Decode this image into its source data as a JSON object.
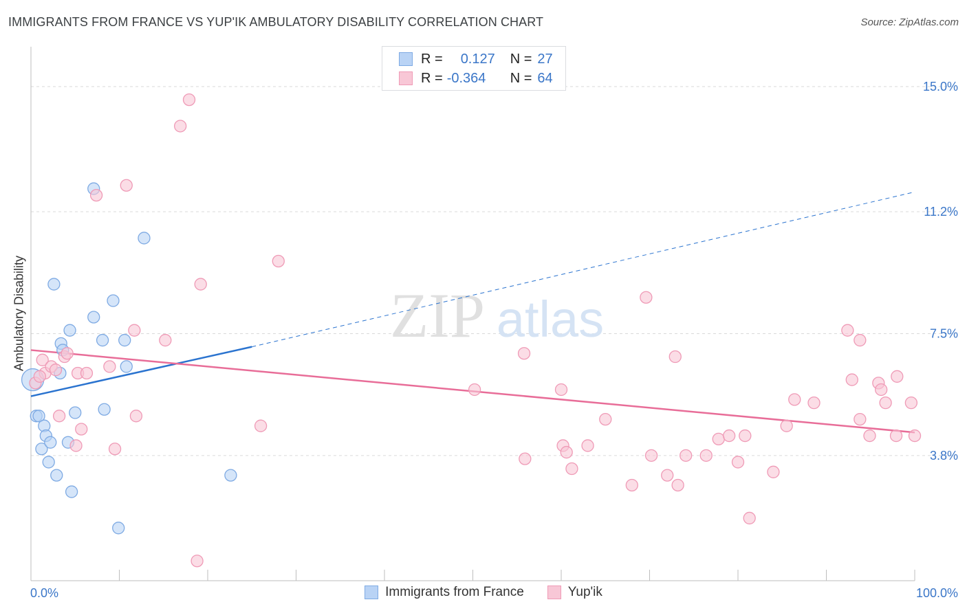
{
  "header": {
    "title": "IMMIGRANTS FROM FRANCE VS YUP'IK AMBULATORY DISABILITY CORRELATION CHART",
    "source": "Source: ZipAtlas.com"
  },
  "legend": {
    "rows": [
      {
        "r_label": "R =",
        "r_value": "0.127",
        "n_label": "N =",
        "n_value": "27"
      },
      {
        "r_label": "R =",
        "r_value": "-0.364",
        "n_label": "N =",
        "n_value": "64"
      }
    ]
  },
  "watermark": {
    "zip": "ZIP",
    "atlas": "atlas"
  },
  "colors": {
    "blue_fill": "#b9d3f5",
    "blue_stroke": "#7eaae3",
    "blue_line": "#2a73cf",
    "pink_fill": "#f8c7d6",
    "pink_stroke": "#ef9ab6",
    "pink_line": "#e86d98",
    "tick_text": "#3a76c8",
    "grid": "#d9d9d9"
  },
  "chart_data": {
    "type": "scatter",
    "title": "IMMIGRANTS FROM FRANCE VS YUP'IK AMBULATORY DISABILITY CORRELATION CHART",
    "xlabel": "",
    "ylabel": "Ambulatory Disability",
    "xlim": [
      0,
      100
    ],
    "ylim": [
      0,
      16.0
    ],
    "x_tick_labels": [
      "0.0%",
      "100.0%"
    ],
    "y_ticks": [
      3.8,
      7.5,
      11.2,
      15.0
    ],
    "y_tick_labels": [
      "3.8%",
      "7.5%",
      "11.2%",
      "15.0%"
    ],
    "grid": true,
    "series": [
      {
        "name": "Immigrants from France",
        "color": "#b9d3f5",
        "r": 0.127,
        "n": 27,
        "points": [
          [
            0.2,
            6.1
          ],
          [
            0.6,
            5.0
          ],
          [
            0.9,
            5.0
          ],
          [
            1.2,
            4.0
          ],
          [
            1.5,
            4.7
          ],
          [
            1.7,
            4.4
          ],
          [
            2.0,
            3.6
          ],
          [
            2.2,
            4.2
          ],
          [
            2.6,
            9.0
          ],
          [
            2.9,
            3.2
          ],
          [
            3.4,
            7.2
          ],
          [
            3.3,
            6.3
          ],
          [
            3.6,
            7.0
          ],
          [
            4.2,
            4.2
          ],
          [
            4.4,
            7.6
          ],
          [
            4.6,
            2.7
          ],
          [
            5.0,
            5.1
          ],
          [
            7.1,
            8.0
          ],
          [
            7.1,
            11.9
          ],
          [
            8.1,
            7.3
          ],
          [
            8.3,
            5.2
          ],
          [
            9.3,
            8.5
          ],
          [
            9.9,
            1.6
          ],
          [
            10.6,
            7.3
          ],
          [
            10.8,
            6.5
          ],
          [
            12.8,
            10.4
          ],
          [
            22.6,
            3.2
          ]
        ],
        "trend": {
          "x": [
            0,
            25
          ],
          "y": [
            5.6,
            7.1
          ],
          "dashed_to": [
            100,
            11.8
          ]
        }
      },
      {
        "name": "Yup'ik",
        "color": "#f8c7d6",
        "r": -0.364,
        "n": 64,
        "points": [
          [
            0.5,
            6.0
          ],
          [
            1.3,
            6.7
          ],
          [
            1.6,
            6.3
          ],
          [
            2.3,
            6.5
          ],
          [
            2.8,
            6.4
          ],
          [
            3.2,
            5.0
          ],
          [
            3.8,
            6.8
          ],
          [
            4.1,
            6.9
          ],
          [
            5.1,
            4.1
          ],
          [
            5.3,
            6.3
          ],
          [
            5.7,
            4.6
          ],
          [
            6.3,
            6.3
          ],
          [
            7.4,
            11.7
          ],
          [
            8.9,
            6.5
          ],
          [
            9.5,
            4.0
          ],
          [
            10.8,
            12.0
          ],
          [
            11.7,
            7.6
          ],
          [
            11.9,
            5.0
          ],
          [
            15.2,
            7.3
          ],
          [
            16.9,
            13.8
          ],
          [
            17.9,
            14.6
          ],
          [
            18.8,
            0.6
          ],
          [
            19.2,
            9.0
          ],
          [
            26.0,
            4.7
          ],
          [
            28.0,
            9.7
          ],
          [
            50.2,
            5.8
          ],
          [
            55.8,
            6.9
          ],
          [
            55.9,
            3.7
          ],
          [
            60.0,
            5.8
          ],
          [
            60.2,
            4.1
          ],
          [
            60.6,
            3.9
          ],
          [
            61.2,
            3.4
          ],
          [
            63.0,
            4.1
          ],
          [
            65.0,
            4.9
          ],
          [
            68.0,
            2.9
          ],
          [
            69.6,
            8.6
          ],
          [
            70.2,
            3.8
          ],
          [
            72.0,
            3.2
          ],
          [
            72.9,
            6.8
          ],
          [
            73.2,
            2.9
          ],
          [
            74.1,
            3.8
          ],
          [
            76.4,
            3.8
          ],
          [
            77.8,
            4.3
          ],
          [
            79.0,
            4.4
          ],
          [
            80.0,
            3.6
          ],
          [
            80.8,
            4.4
          ],
          [
            81.3,
            1.9
          ],
          [
            84.0,
            3.3
          ],
          [
            85.5,
            4.7
          ],
          [
            86.4,
            5.5
          ],
          [
            88.6,
            5.4
          ],
          [
            92.4,
            7.6
          ],
          [
            92.9,
            6.1
          ],
          [
            93.8,
            4.9
          ],
          [
            93.8,
            7.3
          ],
          [
            94.9,
            4.4
          ],
          [
            95.9,
            6.0
          ],
          [
            96.2,
            5.8
          ],
          [
            96.7,
            5.4
          ],
          [
            97.9,
            4.4
          ],
          [
            98.0,
            6.2
          ],
          [
            99.6,
            5.4
          ],
          [
            100.0,
            4.4
          ],
          [
            1.0,
            6.2
          ]
        ],
        "trend": {
          "x": [
            0,
            100
          ],
          "y": [
            7.0,
            4.5
          ]
        }
      }
    ]
  }
}
